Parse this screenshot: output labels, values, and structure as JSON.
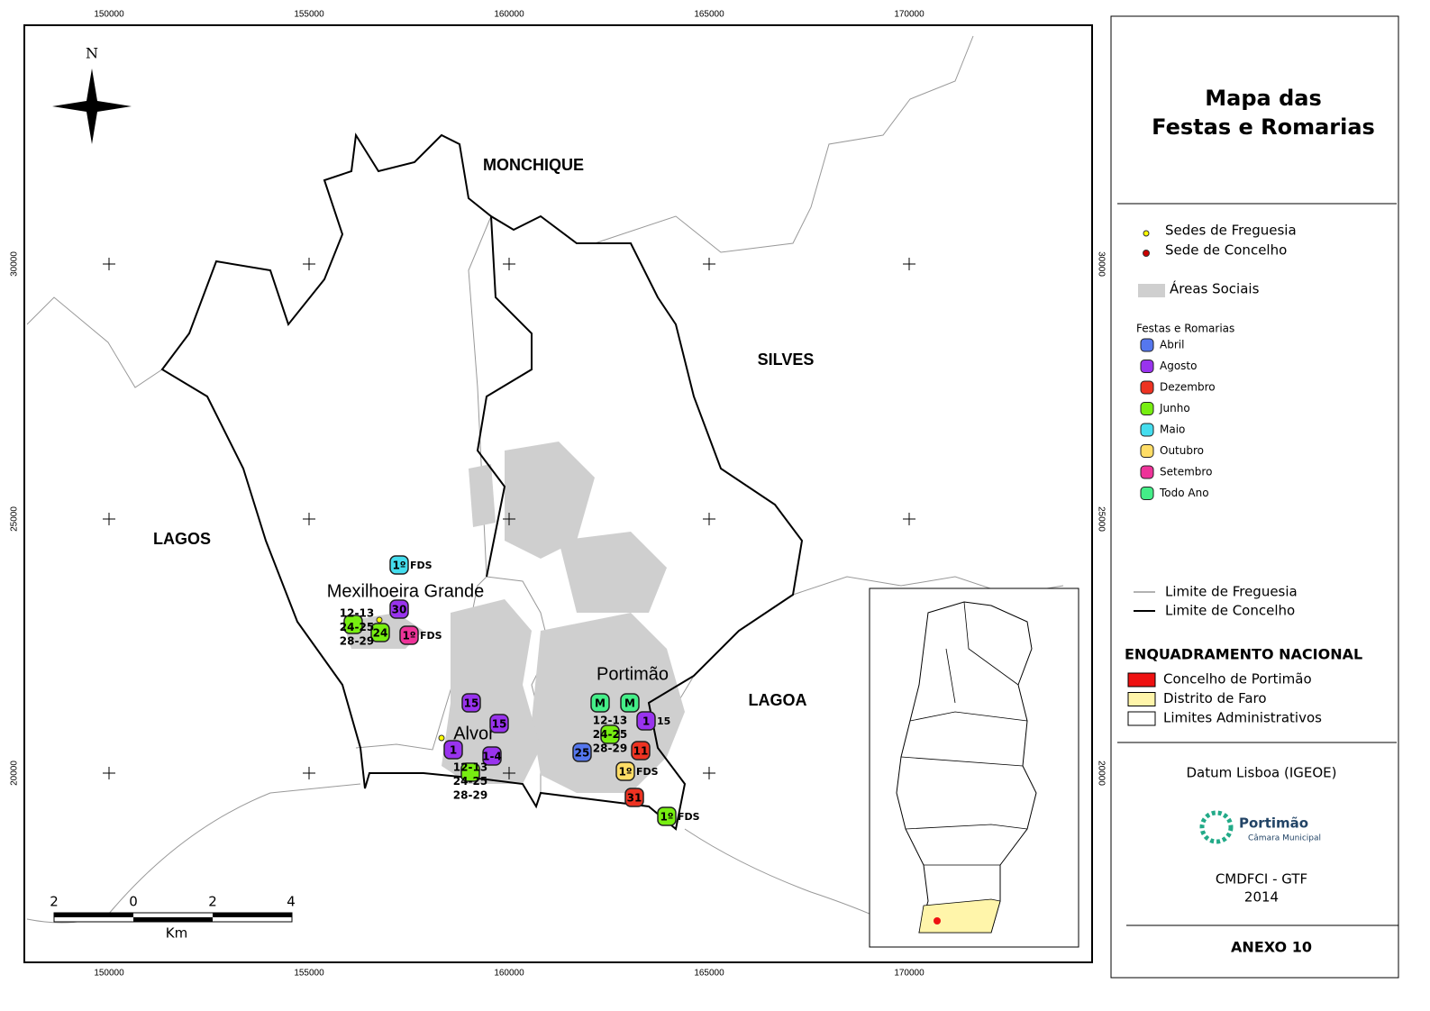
{
  "map": {
    "x_ticks": [
      "150000",
      "155000",
      "160000",
      "165000",
      "170000"
    ],
    "y_ticks": [
      "30000",
      "25000",
      "20000"
    ],
    "north": "N",
    "places": [
      "MONCHIQUE",
      "SILVES",
      "LAGOS",
      "LAGOA",
      "Mexilhoeira Grande",
      "Portimão",
      "Alvor"
    ],
    "markers": [
      {
        "label": "1º",
        "note": "FDS",
        "color": "#44ddee"
      },
      {
        "label": "30",
        "color": "#9933ee"
      },
      {
        "color": "#77ee11"
      },
      {
        "label": "24",
        "color": "#77ee11"
      },
      {
        "label": "1º",
        "note": "FDS",
        "color": "#ee3399"
      },
      {
        "label": "15",
        "color": "#9933ee"
      },
      {
        "label": "15",
        "color": "#9933ee"
      },
      {
        "label": "1",
        "color": "#9933ee"
      },
      {
        "label": "1-4",
        "color": "#9933ee"
      },
      {
        "color": "#77ee11"
      },
      {
        "label": "M",
        "color": "#44ee88"
      },
      {
        "label": "M",
        "color": "#44ee88"
      },
      {
        "label": "1",
        "note": "15",
        "color": "#9933ee"
      },
      {
        "color": "#77ee11"
      },
      {
        "label": "25",
        "color": "#5577ee"
      },
      {
        "label": "11",
        "color": "#ee3322"
      },
      {
        "label": "1º",
        "note": "FDS",
        "color": "#ffdd66"
      },
      {
        "label": "31",
        "color": "#ee3322"
      },
      {
        "label": "1º",
        "note": "FDS",
        "color": "#77ee11"
      }
    ],
    "date_groups": [
      [
        "12-13",
        "24-25",
        "28-29"
      ],
      [
        "12-13",
        "24-25",
        "28-29"
      ],
      [
        "12-13",
        "24-25",
        "28-29"
      ]
    ],
    "scale_bar": {
      "labels": [
        "2",
        "0",
        "2",
        "4"
      ],
      "unit": "Km"
    }
  },
  "legend": {
    "title": [
      "Mapa das",
      "Festas e Romarias"
    ],
    "seats": [
      "Sedes de Freguesia",
      "Sede de Concelho"
    ],
    "social_areas": "Áreas Sociais",
    "festas_title": "Festas e Romarias",
    "festas": [
      {
        "name": "Abril",
        "color": "#5577ee"
      },
      {
        "name": "Agosto",
        "color": "#9933ee"
      },
      {
        "name": "Dezembro",
        "color": "#ee3322"
      },
      {
        "name": "Junho",
        "color": "#77ee11"
      },
      {
        "name": "Maio",
        "color": "#44ddee"
      },
      {
        "name": "Outubro",
        "color": "#ffdd66"
      },
      {
        "name": "Setembro",
        "color": "#ee3399"
      },
      {
        "name": "Todo Ano",
        "color": "#44ee88"
      }
    ],
    "limits": [
      "Limite de Freguesia",
      "Limite de Concelho"
    ],
    "national_title": "ENQUADRAMENTO NACIONAL",
    "national": [
      {
        "name": "Concelho de Portimão",
        "color": "#ee1111"
      },
      {
        "name": "Distrito de Faro",
        "color": "#fff5aa"
      },
      {
        "name": "Limites Administrativos",
        "color": "#ffffff"
      }
    ],
    "datum": "Datum Lisboa (IGEOE)",
    "logo": [
      "Portimão",
      "Câmara Municipal"
    ],
    "credit": [
      "CMDFCI - GTF",
      "2014"
    ],
    "annex": "ANEXO 10"
  }
}
